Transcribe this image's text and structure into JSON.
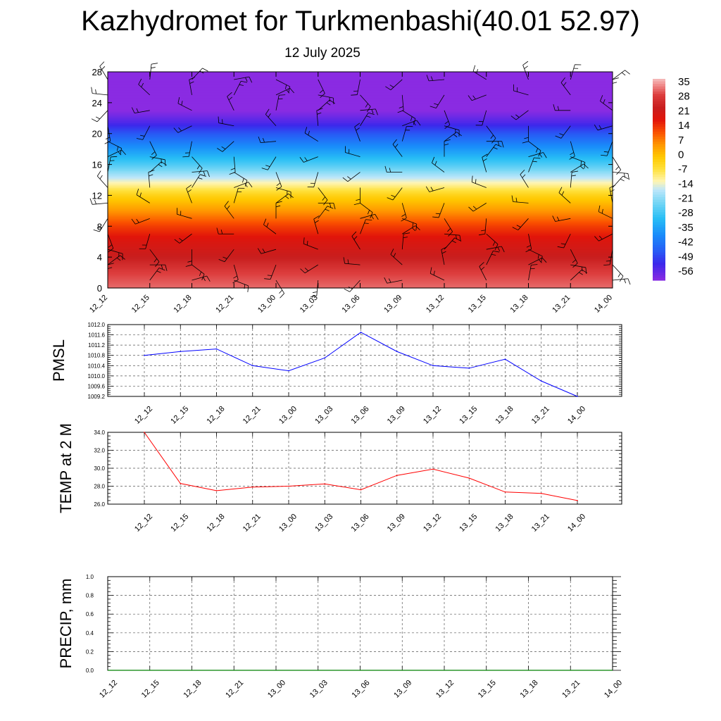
{
  "header": {
    "title": "Kazhydromet for Turkmenbashi(40.01 52.97)",
    "date": "12 July 2025"
  },
  "colors": {
    "pmsl_line": "#0000ff",
    "temp_line": "#ff0000",
    "precip_line": "#008000"
  },
  "chart_data": [
    {
      "type": "heatmap",
      "name": "temperature-wind-cross-section",
      "x_tick_labels": [
        "12_12",
        "12_15",
        "12_18",
        "12_21",
        "13_00",
        "13_03",
        "13_06",
        "13_09",
        "13_12",
        "13_15",
        "13_18",
        "13_21",
        "14_00"
      ],
      "y_ticks": [
        0,
        4,
        8,
        12,
        16,
        20,
        24,
        28
      ],
      "ylim": [
        0,
        28
      ],
      "colorbar_labels": [
        "35",
        "28",
        "21",
        "14",
        "7",
        "0",
        "-7",
        "-14",
        "-21",
        "-28",
        "-35",
        "-42",
        "-49",
        "-56"
      ],
      "colorbar_range": [
        -60,
        38
      ],
      "profile": [
        {
          "y": 0,
          "value": 33
        },
        {
          "y": 2,
          "value": 30
        },
        {
          "y": 4,
          "value": 24
        },
        {
          "y": 6,
          "value": 20
        },
        {
          "y": 8,
          "value": 14
        },
        {
          "y": 10,
          "value": 6
        },
        {
          "y": 12,
          "value": -2
        },
        {
          "y": 14,
          "value": -14
        },
        {
          "y": 16,
          "value": -26
        },
        {
          "y": 18,
          "value": -36
        },
        {
          "y": 20,
          "value": -46
        },
        {
          "y": 21.5,
          "value": -54
        },
        {
          "y": 23,
          "value": -60
        },
        {
          "y": 28,
          "value": -60
        }
      ],
      "wind_barb_levels": [
        1,
        3,
        5,
        7,
        9,
        11,
        13,
        15,
        17,
        19,
        21,
        23,
        25,
        27
      ],
      "grid": false
    },
    {
      "type": "line",
      "name": "PMSL",
      "ylabel": "PMSL",
      "categories": [
        "12_12",
        "12_15",
        "12_18",
        "12_21",
        "13_00",
        "13_03",
        "13_06",
        "13_09",
        "13_12",
        "13_15",
        "13_18",
        "13_21",
        "14_00"
      ],
      "values": [
        1010.8,
        1010.95,
        1011.05,
        1010.4,
        1010.2,
        1010.7,
        1011.7,
        1010.95,
        1010.4,
        1010.3,
        1010.65,
        1009.8,
        1009.2
      ],
      "ylim": [
        1009.2,
        1012.0
      ],
      "y_ticks": [
        "1009.2",
        "1009.6",
        "1010.0",
        "1010.4",
        "1010.8",
        "1011.2",
        "1011.6",
        "1012.0"
      ],
      "grid": true
    },
    {
      "type": "line",
      "name": "TEMP at 2 M",
      "ylabel": "TEMP at 2 M",
      "categories": [
        "12_12",
        "12_15",
        "12_18",
        "12_21",
        "13_00",
        "13_03",
        "13_06",
        "13_09",
        "13_12",
        "13_15",
        "13_18",
        "13_21",
        "14_00"
      ],
      "values": [
        34.0,
        28.3,
        27.5,
        27.9,
        28.0,
        28.25,
        27.6,
        29.2,
        29.9,
        28.9,
        27.35,
        27.2,
        26.4
      ],
      "ylim": [
        26.0,
        34.0
      ],
      "y_ticks": [
        "26.0",
        "28.0",
        "30.0",
        "32.0",
        "34.0"
      ],
      "grid": true
    },
    {
      "type": "line",
      "name": "PRECIP, mm",
      "ylabel": "PRECIP, mm",
      "categories": [
        "12_12",
        "12_15",
        "12_18",
        "12_21",
        "13_00",
        "13_03",
        "13_06",
        "13_09",
        "13_12",
        "13_15",
        "13_18",
        "13_21",
        "14_00"
      ],
      "values": [
        0,
        0,
        0,
        0,
        0,
        0,
        0,
        0,
        0,
        0,
        0,
        0,
        0
      ],
      "ylim": [
        0.0,
        1.0
      ],
      "y_ticks": [
        "0.0",
        "0.2",
        "0.4",
        "0.6",
        "0.8",
        "1.0"
      ],
      "grid": true
    }
  ]
}
